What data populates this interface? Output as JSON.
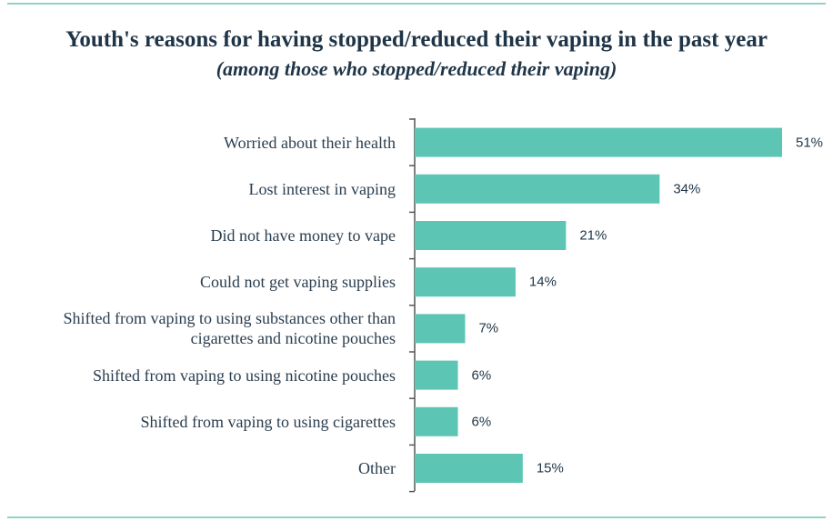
{
  "chart_data": {
    "type": "bar",
    "orientation": "horizontal",
    "title": "Youth's reasons for having stopped/reduced their vaping in the past year",
    "subtitle": "(among those who stopped/reduced their vaping)",
    "categories": [
      "Worried about their health",
      "Lost interest in vaping",
      "Did not have money to vape",
      "Could not get vaping supplies",
      "Shifted from vaping to using substances other than cigarettes and nicotine pouches",
      "Shifted from vaping to using nicotine pouches",
      "Shifted from vaping to using cigarettes",
      "Other"
    ],
    "values": [
      51,
      34,
      21,
      14,
      7,
      6,
      6,
      15
    ],
    "value_labels": [
      "51%",
      "34%",
      "21%",
      "14%",
      "7%",
      "6%",
      "6%",
      "15%"
    ],
    "color": "#5cc5b3"
  }
}
